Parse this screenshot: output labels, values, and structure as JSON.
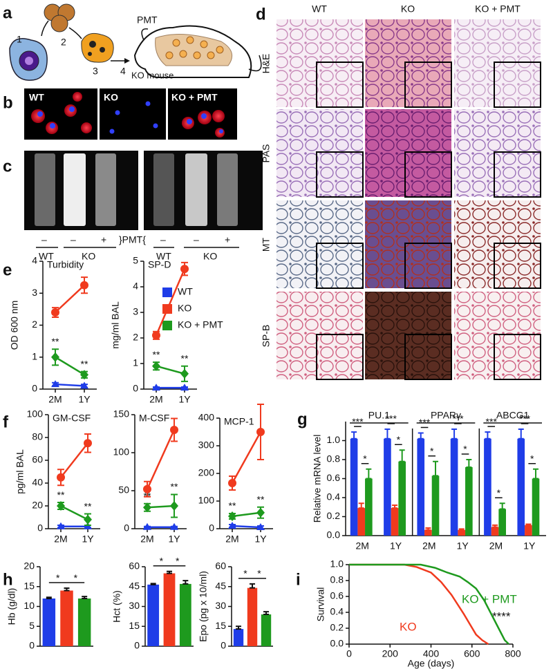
{
  "panel_labels": [
    "a",
    "b",
    "c",
    "d",
    "e",
    "f",
    "g",
    "h",
    "i"
  ],
  "diagram_a": {
    "steps": [
      "1",
      "2",
      "3",
      "4"
    ],
    "label": "PMT",
    "target": "KO mouse"
  },
  "images_b": [
    "WT",
    "KO",
    "KO + PMT"
  ],
  "tubes_c": {
    "signs": [
      "–",
      "–",
      "+",
      "–",
      "–",
      "+"
    ],
    "bracket": "}PMT{",
    "groups": [
      "WT",
      "KO",
      "WT",
      "KO"
    ]
  },
  "histology_d": {
    "columns": [
      "WT",
      "KO",
      "KO + PMT"
    ],
    "rows": [
      "H&E",
      "PAS",
      "MT",
      "SP-B"
    ]
  },
  "chart_data": [
    {
      "type": "line",
      "title": "Turbidity",
      "y_label": "OD 600 nm",
      "categories": [
        "2M",
        "1Y"
      ],
      "ylim": [
        0,
        4
      ],
      "yticks": [
        0,
        1,
        2,
        3,
        4
      ],
      "legend": "right",
      "series": [
        {
          "name": "WT",
          "color": "#1f3de8",
          "values": [
            0.15,
            0.1
          ],
          "errors": [
            0.05,
            0.05
          ]
        },
        {
          "name": "KO",
          "color": "#f03a1e",
          "values": [
            2.4,
            3.25
          ],
          "errors": [
            0.15,
            0.25
          ]
        },
        {
          "name": "KO + PMT",
          "color": "#1e9a1e",
          "values": [
            1.0,
            0.45
          ],
          "errors": [
            0.25,
            0.1
          ],
          "value_annotations": [
            "**",
            "**"
          ]
        }
      ]
    },
    {
      "type": "line",
      "title": "SP-D",
      "y_label": "mg/ml BAL",
      "categories": [
        "2M",
        "1Y"
      ],
      "ylim": [
        0,
        5
      ],
      "yticks": [
        0,
        1,
        2,
        3,
        4,
        5
      ],
      "series": [
        {
          "color": "#1f3de8",
          "values": [
            0.05,
            0.05
          ],
          "errors": [
            0.03,
            0.03
          ]
        },
        {
          "color": "#f03a1e",
          "values": [
            2.1,
            4.7
          ],
          "errors": [
            0.15,
            0.25
          ]
        },
        {
          "color": "#1e9a1e",
          "values": [
            0.9,
            0.6
          ],
          "errors": [
            0.15,
            0.3
          ],
          "value_annotations": [
            "**",
            "**"
          ]
        }
      ]
    },
    {
      "type": "line",
      "title": "GM-CSF",
      "y_label": "pg/ml BAL",
      "categories": [
        "2M",
        "1Y"
      ],
      "ylim": [
        0,
        100
      ],
      "yticks": [
        0,
        20,
        40,
        60,
        80,
        100
      ],
      "series": [
        {
          "color": "#1f3de8",
          "values": [
            2,
            2
          ],
          "errors": [
            1,
            1
          ]
        },
        {
          "color": "#f03a1e",
          "values": [
            45,
            75
          ],
          "errors": [
            7,
            8
          ]
        },
        {
          "color": "#1e9a1e",
          "values": [
            20,
            8
          ],
          "errors": [
            3,
            5
          ],
          "value_annotations": [
            "**",
            "**"
          ]
        }
      ]
    },
    {
      "type": "line",
      "title": "M-CSF",
      "categories": [
        "2M",
        "1Y"
      ],
      "ylim": [
        0,
        150
      ],
      "yticks": [
        0,
        50,
        100,
        150
      ],
      "series": [
        {
          "color": "#1f3de8",
          "values": [
            2,
            2
          ],
          "errors": [
            1,
            1
          ]
        },
        {
          "color": "#f03a1e",
          "values": [
            52,
            130
          ],
          "errors": [
            10,
            15
          ]
        },
        {
          "color": "#1e9a1e",
          "values": [
            28,
            30
          ],
          "errors": [
            5,
            15
          ],
          "value_annotations": [
            "**",
            "**"
          ]
        }
      ]
    },
    {
      "type": "line",
      "title": "MCP-1",
      "categories": [
        "2M",
        "1Y"
      ],
      "ylim": [
        0,
        400
      ],
      "yticks": [
        0,
        100,
        200,
        300,
        400
      ],
      "series": [
        {
          "color": "#1f3de8",
          "values": [
            10,
            5
          ],
          "errors": [
            5,
            5
          ]
        },
        {
          "color": "#f03a1e",
          "values": [
            165,
            350
          ],
          "errors": [
            25,
            100
          ]
        },
        {
          "color": "#1e9a1e",
          "values": [
            45,
            58
          ],
          "errors": [
            10,
            20
          ],
          "value_annotations": [
            "**",
            "**"
          ]
        }
      ]
    },
    {
      "type": "grouped_bar",
      "y_label": "Relative mRNA level",
      "groups": [
        "PU.1",
        "PPARγ",
        "ABCG1"
      ],
      "categories": [
        "2M",
        "1Y",
        "2M",
        "1Y",
        "2M",
        "1Y"
      ],
      "ylim": [
        0,
        1.2
      ],
      "yticks": [
        {
          "value": 0,
          "label": "0.0"
        },
        0.2,
        0.4,
        0.6,
        0.8,
        {
          "value": 1,
          "label": "1.0"
        }
      ],
      "series": [
        {
          "color": "#1f3de8",
          "values": [
            1.02,
            1.02,
            1.02,
            1.02,
            1.02,
            1.02
          ],
          "errors": [
            0.07,
            0.1,
            0.06,
            0.1,
            0.07,
            0.1
          ]
        },
        {
          "color": "#f03a1e",
          "values": [
            0.29,
            0.29,
            0.06,
            0.06,
            0.09,
            0.11
          ],
          "errors": [
            0.05,
            0.03,
            0.02,
            0.01,
            0.02,
            0.01
          ]
        },
        {
          "color": "#1e9a1e",
          "values": [
            0.6,
            0.78,
            0.63,
            0.72,
            0.28,
            0.6
          ],
          "errors": [
            0.1,
            0.12,
            0.15,
            0.08,
            0.06,
            0.1
          ]
        }
      ],
      "significance": [
        {
          "high": "***",
          "low": "*"
        },
        {
          "high": "***",
          "low": "*"
        },
        {
          "high": "***",
          "low": "*"
        },
        {
          "high": "***",
          "low": "*"
        },
        {
          "high": "***",
          "low": "*"
        },
        {
          "high": "***",
          "low": "*"
        }
      ]
    },
    {
      "type": "bar",
      "y_label": "Hb (g/dl)",
      "categories": [
        null,
        null,
        null
      ],
      "colors": [
        "#1f3de8",
        "#f03a1e",
        "#1e9a1e"
      ],
      "values": [
        12,
        14,
        12
      ],
      "errors": [
        0.3,
        0.6,
        0.5
      ],
      "ylim": [
        0,
        20
      ],
      "yticks": [
        0,
        5,
        10,
        15,
        20
      ],
      "significance": [
        "*",
        "*"
      ]
    },
    {
      "type": "bar",
      "y_label": "Hct (%)",
      "categories": [
        null,
        null,
        null
      ],
      "colors": [
        "#1f3de8",
        "#f03a1e",
        "#1e9a1e"
      ],
      "values": [
        46.5,
        55,
        47
      ],
      "errors": [
        0.8,
        1.5,
        2.5
      ],
      "ylim": [
        0,
        60
      ],
      "yticks": [
        0,
        15,
        30,
        45,
        60
      ],
      "significance": [
        "*",
        "*"
      ]
    },
    {
      "type": "bar",
      "y_label": "Epo (pg x 10/ml)",
      "categories": [
        null,
        null,
        null
      ],
      "colors": [
        "#1f3de8",
        "#f03a1e",
        "#1e9a1e"
      ],
      "values": [
        13,
        44,
        24
      ],
      "errors": [
        2,
        3,
        2
      ],
      "ylim": [
        0,
        60
      ],
      "yticks": [
        0,
        15,
        30,
        45,
        60
      ],
      "significance": [
        "*",
        "*"
      ]
    },
    {
      "type": "survival",
      "x_label": "Age (days)",
      "y_label": "Survival",
      "annotation": "****",
      "xlim": [
        0,
        800
      ],
      "xticks": [
        0,
        200,
        400,
        600,
        800
      ],
      "ylim": [
        0,
        1
      ],
      "yticks": [
        {
          "value": 0,
          "label": "0.0"
        },
        0.2,
        0.4,
        0.6,
        0.8,
        {
          "value": 1,
          "label": "1.0"
        }
      ],
      "series": [
        {
          "name": "KO",
          "color": "#f03a1e",
          "x": [
            0,
            270,
            330,
            400,
            450,
            500,
            530,
            560,
            590,
            620,
            650,
            680
          ],
          "values": [
            1,
            1,
            0.97,
            0.9,
            0.78,
            0.62,
            0.5,
            0.38,
            0.25,
            0.12,
            0.05,
            0
          ]
        },
        {
          "name": "KO + PMT",
          "color": "#1e9a1e",
          "x": [
            0,
            350,
            420,
            480,
            540,
            580,
            620,
            660,
            700,
            730,
            760,
            780
          ],
          "values": [
            1,
            1,
            0.96,
            0.9,
            0.85,
            0.78,
            0.7,
            0.55,
            0.35,
            0.2,
            0.05,
            0
          ]
        }
      ]
    }
  ]
}
